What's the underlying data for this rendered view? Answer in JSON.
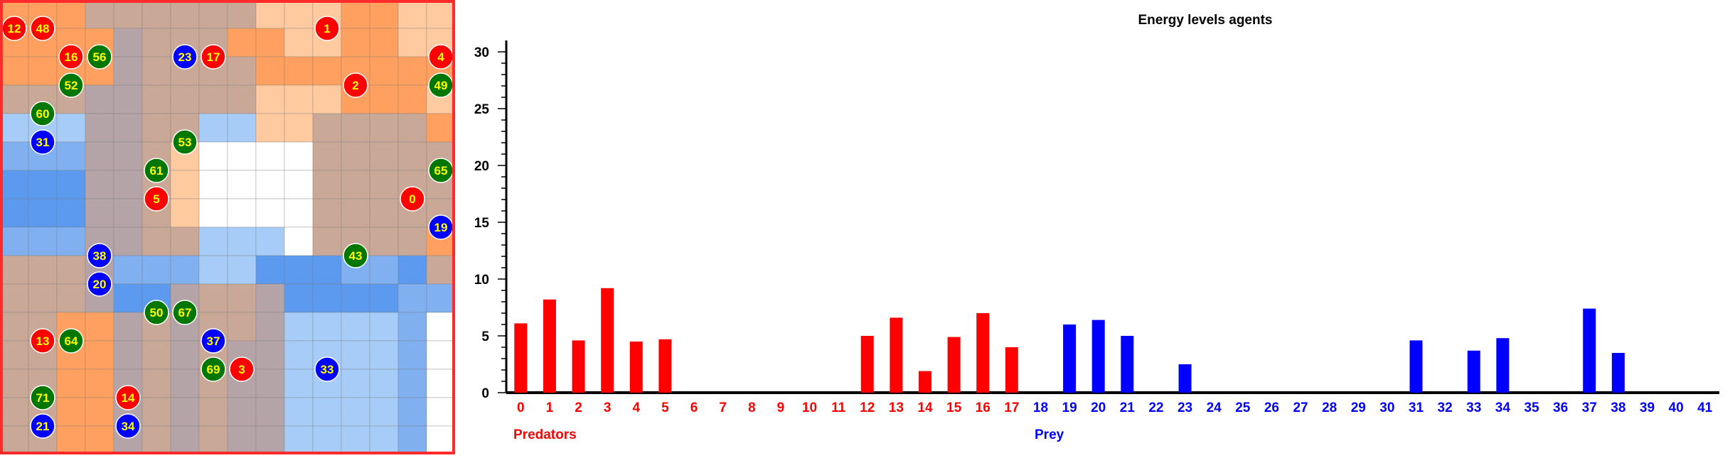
{
  "colors": {
    "predator": "#ff0000",
    "prey": "#0000ff",
    "plant": "#007700",
    "agent_label": "#ffff00",
    "border": "#ff2a2a",
    "axis": "#000000"
  },
  "grid": {
    "rows": 16,
    "cols": 16,
    "palette": {
      "o": "#ffa060",
      "O": "#ffcaa0",
      "t": "#caa898",
      "g": "#b4a4a8",
      "b": "#5c9af0",
      "m": "#80b0f0",
      "l": "#a8ccf8",
      "w": "#ffffff"
    },
    "cells": [
      "ooottttttOOOooOO",
      "oooogtttooOOooOO",
      "oooogttttooooooo",
      "tttggttttOOOoooO",
      "lllggttllOOtttto",
      "mmmggtOwwwwttttt",
      "bbbggtOwwwwttttt",
      "bbbggtOwwwwttttt",
      "mmmggttlllwtttto",
      "tttgmmmllbbbmmbt",
      "tttgbbgttgbbbbmm",
      "ttoogtgttgllllmw",
      "ttoogtgtggllllmw",
      "ttoogtgtggllllmw",
      "ttoogtgtggllllmw",
      "ttoogtgtggllllmw"
    ],
    "agents": [
      {
        "id": "12",
        "kind": "predator",
        "row": 1,
        "col": 0
      },
      {
        "id": "48",
        "kind": "predator",
        "row": 1,
        "col": 1
      },
      {
        "id": "1",
        "kind": "predator",
        "row": 1,
        "col": 11
      },
      {
        "id": "16",
        "kind": "predator",
        "row": 2,
        "col": 2
      },
      {
        "id": "56",
        "kind": "plant",
        "row": 2,
        "col": 3
      },
      {
        "id": "23",
        "kind": "prey",
        "row": 2,
        "col": 6
      },
      {
        "id": "17",
        "kind": "predator",
        "row": 2,
        "col": 7
      },
      {
        "id": "4",
        "kind": "predator",
        "row": 2,
        "col": 15
      },
      {
        "id": "52",
        "kind": "plant",
        "row": 3,
        "col": 2
      },
      {
        "id": "2",
        "kind": "predator",
        "row": 3,
        "col": 12
      },
      {
        "id": "49",
        "kind": "plant",
        "row": 3,
        "col": 15
      },
      {
        "id": "60",
        "kind": "plant",
        "row": 4,
        "col": 1
      },
      {
        "id": "31",
        "kind": "prey",
        "row": 5,
        "col": 1
      },
      {
        "id": "53",
        "kind": "plant",
        "row": 5,
        "col": 6
      },
      {
        "id": "61",
        "kind": "plant",
        "row": 6,
        "col": 5
      },
      {
        "id": "65",
        "kind": "plant",
        "row": 6,
        "col": 15
      },
      {
        "id": "5",
        "kind": "predator",
        "row": 7,
        "col": 5
      },
      {
        "id": "0",
        "kind": "predator",
        "row": 7,
        "col": 14
      },
      {
        "id": "19",
        "kind": "prey",
        "row": 8,
        "col": 15
      },
      {
        "id": "38",
        "kind": "prey",
        "row": 9,
        "col": 3
      },
      {
        "id": "43",
        "kind": "plant",
        "row": 9,
        "col": 12
      },
      {
        "id": "20",
        "kind": "prey",
        "row": 10,
        "col": 3
      },
      {
        "id": "50",
        "kind": "plant",
        "row": 11,
        "col": 5
      },
      {
        "id": "67",
        "kind": "plant",
        "row": 11,
        "col": 6
      },
      {
        "id": "13",
        "kind": "predator",
        "row": 12,
        "col": 1
      },
      {
        "id": "64",
        "kind": "plant",
        "row": 12,
        "col": 2
      },
      {
        "id": "37",
        "kind": "prey",
        "row": 12,
        "col": 7
      },
      {
        "id": "69",
        "kind": "plant",
        "row": 13,
        "col": 7
      },
      {
        "id": "3",
        "kind": "predator",
        "row": 13,
        "col": 8
      },
      {
        "id": "33",
        "kind": "prey",
        "row": 13,
        "col": 11
      },
      {
        "id": "71",
        "kind": "plant",
        "row": 14,
        "col": 1
      },
      {
        "id": "14",
        "kind": "predator",
        "row": 14,
        "col": 4
      },
      {
        "id": "21",
        "kind": "prey",
        "row": 15,
        "col": 1
      },
      {
        "id": "34",
        "kind": "prey",
        "row": 15,
        "col": 4
      }
    ]
  },
  "chart_data": {
    "type": "bar",
    "title": "Energy levels agents",
    "ylim": [
      0,
      31
    ],
    "yticks": [
      0,
      5,
      10,
      15,
      20,
      25,
      30
    ],
    "categories": [
      "0",
      "1",
      "2",
      "3",
      "4",
      "5",
      "6",
      "7",
      "8",
      "9",
      "10",
      "11",
      "12",
      "13",
      "14",
      "15",
      "16",
      "17",
      "18",
      "19",
      "20",
      "21",
      "22",
      "23",
      "24",
      "25",
      "26",
      "27",
      "28",
      "29",
      "30",
      "31",
      "32",
      "33",
      "34",
      "35",
      "36",
      "37",
      "38",
      "39",
      "40",
      "41"
    ],
    "category_kinds": [
      "predator",
      "predator",
      "predator",
      "predator",
      "predator",
      "predator",
      "predator",
      "predator",
      "predator",
      "predator",
      "predator",
      "predator",
      "predator",
      "predator",
      "predator",
      "predator",
      "predator",
      "predator",
      "prey",
      "prey",
      "prey",
      "prey",
      "prey",
      "prey",
      "prey",
      "prey",
      "prey",
      "prey",
      "prey",
      "prey",
      "prey",
      "prey",
      "prey",
      "prey",
      "prey",
      "prey",
      "prey",
      "prey",
      "prey",
      "prey",
      "prey",
      "prey"
    ],
    "values": [
      6.1,
      8.2,
      4.6,
      9.2,
      4.5,
      4.7,
      0,
      0,
      0,
      0,
      0,
      0,
      5.0,
      6.6,
      1.9,
      4.9,
      7.0,
      4.0,
      0,
      6.0,
      6.4,
      5.0,
      0,
      2.5,
      0,
      0,
      0,
      0,
      0,
      0,
      0,
      4.6,
      0,
      3.7,
      4.8,
      0,
      0,
      7.4,
      3.5,
      0,
      0,
      0
    ],
    "group_labels": {
      "predators": "Predators",
      "prey": "Prey"
    },
    "grid": false
  }
}
